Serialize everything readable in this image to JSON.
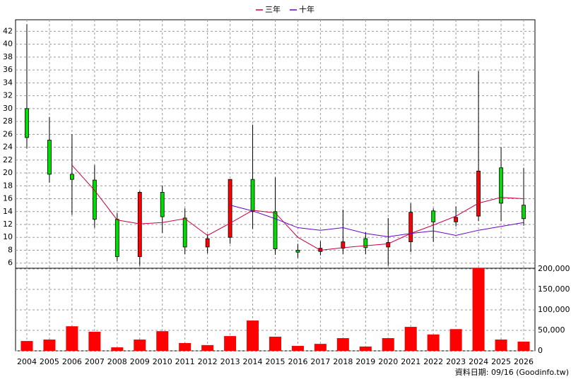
{
  "chart_data": [
    {
      "type": "candlestick",
      "categories": [
        "2004",
        "2005",
        "2006",
        "2007",
        "2008",
        "2009",
        "2010",
        "2011",
        "2012",
        "2013",
        "2014",
        "2015",
        "2016",
        "2017",
        "2018",
        "2019",
        "2020",
        "2021",
        "2022",
        "2023",
        "2024",
        "2025",
        "2026"
      ],
      "open": [
        30,
        25.1,
        19.8,
        18.9,
        12.8,
        7.0,
        17.0,
        13.0,
        8.5,
        10.0,
        19.0,
        14.0,
        8.0,
        7.8,
        8.3,
        9.8,
        8.5,
        9.3,
        14.1,
        12.4,
        13.3,
        20.8,
        15.0
      ],
      "high": [
        43.1,
        28.7,
        26,
        21.2,
        13.8,
        17.2,
        18,
        14.5,
        10.5,
        19,
        27.5,
        19.3,
        9.0,
        9.4,
        14.3,
        10.8,
        13.0,
        15.3,
        14.5,
        14.8,
        35.8,
        24,
        20.8
      ],
      "low": [
        23.8,
        18.5,
        13.5,
        11.5,
        6.3,
        5.6,
        10.7,
        7.4,
        7.5,
        9,
        11.3,
        7.3,
        6.8,
        7.2,
        7.4,
        7.4,
        5.6,
        7.7,
        9.3,
        11.7,
        12.5,
        12.5,
        11.8
      ],
      "close": [
        25.5,
        19.8,
        19.0,
        12.8,
        7.0,
        17.0,
        13.2,
        8.5,
        9.8,
        19.0,
        14.0,
        8.2,
        7.7,
        8.3,
        9.3,
        8.4,
        9.2,
        13.9,
        12.4,
        13.1,
        20.3,
        15.3,
        12.9
      ],
      "up_color": "#ff0000",
      "down_color": "#00dd00",
      "series": [
        {
          "name": "三年",
          "color": "#cc0044",
          "values": [
            null,
            null,
            21.2,
            17.3,
            12.7,
            12.1,
            12.3,
            12.9,
            10.3,
            12.2,
            14.2,
            13.8,
            10.0,
            8.0,
            8.4,
            8.7,
            9.0,
            10.6,
            11.9,
            13.3,
            15.3,
            16.2,
            16.0
          ]
        },
        {
          "name": "十年",
          "color": "#6600cc",
          "values": [
            null,
            null,
            null,
            null,
            null,
            null,
            null,
            null,
            null,
            15.0,
            14.1,
            12.9,
            11.5,
            11.1,
            11.5,
            10.6,
            10.1,
            10.6,
            11.0,
            10.3,
            11.1,
            11.7,
            12.3
          ]
        }
      ],
      "ylim": [
        5.2,
        43.8
      ],
      "yticks": [
        6,
        8,
        10,
        12,
        14,
        16,
        18,
        20,
        22,
        24,
        26,
        28,
        30,
        32,
        34,
        36,
        38,
        40,
        42
      ],
      "grid": true
    },
    {
      "type": "bar",
      "values": [
        24000,
        27500,
        60000,
        46500,
        8500,
        27500,
        48000,
        19000,
        14000,
        36000,
        74000,
        34500,
        12000,
        17000,
        31000,
        10500,
        31000,
        58500,
        40000,
        53000,
        203000,
        27500,
        22500
      ],
      "color": "#ff0000",
      "ylim": [
        0,
        200000
      ],
      "yticks": [
        0,
        {
          "value": 50000,
          "label": "50,000"
        },
        {
          "value": 100000,
          "label": "100,000"
        },
        {
          "value": 150000,
          "label": "150,000"
        },
        {
          "value": 200000,
          "label": "200,000"
        }
      ],
      "grid": true
    }
  ],
  "footer": "資料日期: 09/16 (Goodinfo.tw)"
}
